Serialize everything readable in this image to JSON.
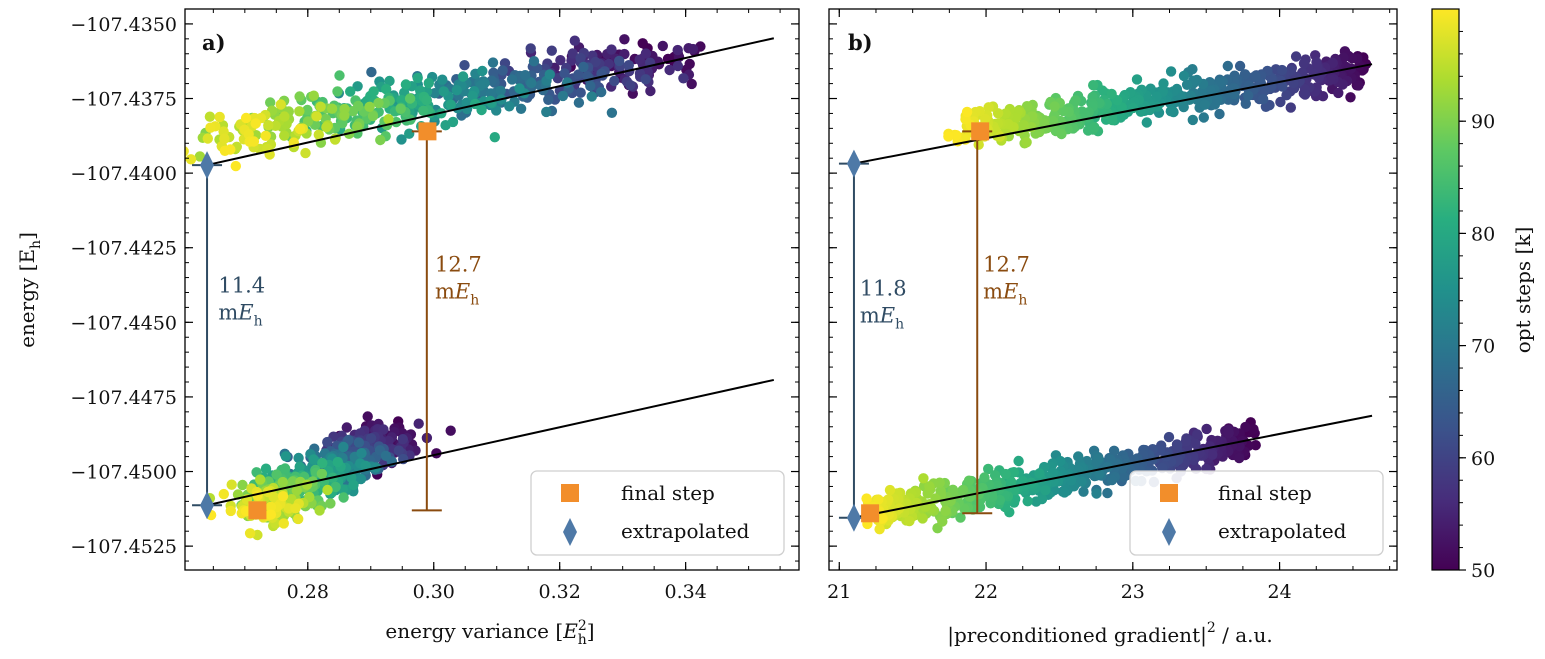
{
  "figure": {
    "y_axis_label": "energy [E",
    "y_axis_label_sub": "h",
    "y_axis_label_end": "]",
    "colorbar": {
      "label": "opt steps [k]",
      "ticks": [
        50,
        60,
        70,
        80,
        90
      ],
      "range": [
        50,
        100
      ]
    },
    "colors": {
      "final_step": "#f28e2b",
      "extrapolated": "#4e79a7",
      "gap_blue": "#2f4b63",
      "gap_orange": "#8a4b0f",
      "fit_line": "#000000"
    }
  },
  "chart_data": [
    {
      "type": "scatter",
      "panel_label": "a)",
      "xlabel": "energy variance [E",
      "xlabel_sub": "h",
      "xlabel_sup": "2",
      "xlabel_end": "]",
      "xlim": [
        0.2605,
        0.358
      ],
      "ylim": [
        -107.4533,
        -107.4345
      ],
      "xticks": [
        0.28,
        0.3,
        0.32,
        0.34
      ],
      "xtick_labels": [
        "0.28",
        "0.30",
        "0.32",
        "0.34"
      ],
      "yticks": [
        -107.435,
        -107.4375,
        -107.44,
        -107.4425,
        -107.445,
        -107.4475,
        -107.45,
        -107.4525
      ],
      "ytick_labels": [
        "−107.4350",
        "−107.4375",
        "−107.4400",
        "−107.4425",
        "−107.4450",
        "−107.4475",
        "−107.4500",
        "−107.4525"
      ],
      "clusters": [
        {
          "name": "upper",
          "steps": [
            50,
            100
          ],
          "x_start": 0.336,
          "x_end": 0.268,
          "y_start": -107.4362,
          "y_end": -107.4388,
          "x_spread": 0.012,
          "y_spread": 0.0005
        },
        {
          "name": "lower",
          "steps": [
            50,
            100
          ],
          "x_start": 0.293,
          "x_end": 0.272,
          "y_start": -107.4488,
          "y_end": -107.4513,
          "x_spread": 0.006,
          "y_spread": 0.0004
        }
      ],
      "fit_lines": [
        {
          "x": [
            0.264,
            0.354
          ],
          "y": [
            -107.43973,
            -107.43548
          ]
        },
        {
          "x": [
            0.264,
            0.354
          ],
          "y": [
            -107.45113,
            -107.44693
          ]
        }
      ],
      "final_step_points": [
        {
          "x": 0.299,
          "y": -107.4386
        },
        {
          "x": 0.272,
          "y": -107.4513
        }
      ],
      "extrapolated_points": [
        {
          "x": 0.264,
          "y": -107.43973
        },
        {
          "x": 0.264,
          "y": -107.45113
        }
      ],
      "gaps": [
        {
          "x": 0.264,
          "y_top": -107.43973,
          "y_bottom": -107.45113,
          "value": "11.4",
          "unit_prefix": "m",
          "unit_var": "E",
          "unit_sub": "h",
          "color": "blue",
          "label_x": 0.2658,
          "label_y": -107.444
        },
        {
          "x": 0.2989,
          "y_top": -107.4386,
          "y_bottom": -107.4513,
          "value": "12.7",
          "unit_prefix": "m",
          "unit_var": "E",
          "unit_sub": "h",
          "color": "orange",
          "label_x": 0.3002,
          "label_y": -107.4433
        }
      ],
      "legend": {
        "position": "lower-right",
        "entries": [
          "final step",
          "extrapolated"
        ]
      }
    },
    {
      "type": "scatter",
      "panel_label": "b)",
      "xlabel": "|preconditioned gradient|",
      "xlabel_sup": "2",
      "xlabel_end": " / a.u.",
      "xlim": [
        20.93,
        24.8
      ],
      "ylim": [
        -107.4533,
        -107.4345
      ],
      "xticks": [
        21,
        22,
        23,
        24
      ],
      "xtick_labels": [
        "21",
        "22",
        "23",
        "24"
      ],
      "yticks": [
        -107.435,
        -107.4375,
        -107.44,
        -107.4425,
        -107.445,
        -107.4475,
        -107.45,
        -107.4525
      ],
      "clusters": [
        {
          "name": "upper",
          "steps": [
            50,
            100
          ],
          "x_start": 24.6,
          "x_end": 21.8,
          "y_start": -107.4365,
          "y_end": -107.4386,
          "x_spread": 0.03,
          "y_spread": 0.0004
        },
        {
          "name": "lower",
          "steps": [
            50,
            100
          ],
          "x_start": 23.8,
          "x_end": 21.2,
          "y_start": -107.449,
          "y_end": -107.4514,
          "x_spread": 0.03,
          "y_spread": 0.0004
        }
      ],
      "fit_lines": [
        {
          "x": [
            21.1,
            24.63
          ],
          "y": [
            -107.43968,
            -107.43635
          ]
        },
        {
          "x": [
            21.1,
            24.63
          ],
          "y": [
            -107.45155,
            -107.44813
          ]
        }
      ],
      "final_step_points": [
        {
          "x": 21.96,
          "y": -107.4386
        },
        {
          "x": 21.21,
          "y": -107.4514
        }
      ],
      "extrapolated_points": [
        {
          "x": 21.1,
          "y": -107.43968
        },
        {
          "x": 21.1,
          "y": -107.45155
        }
      ],
      "gaps": [
        {
          "x": 21.1,
          "y_top": -107.43968,
          "y_bottom": -107.45155,
          "value": "11.8",
          "unit_prefix": "m",
          "unit_var": "E",
          "unit_sub": "h",
          "color": "blue",
          "label_x": 21.14,
          "label_y": -107.4441
        },
        {
          "x": 21.94,
          "y_top": -107.4386,
          "y_bottom": -107.4514,
          "value": "12.7",
          "unit_prefix": "m",
          "unit_var": "E",
          "unit_sub": "h",
          "color": "orange",
          "label_x": 21.98,
          "label_y": -107.4433
        }
      ],
      "legend": {
        "position": "lower-right",
        "entries": [
          "final step",
          "extrapolated"
        ]
      }
    }
  ]
}
